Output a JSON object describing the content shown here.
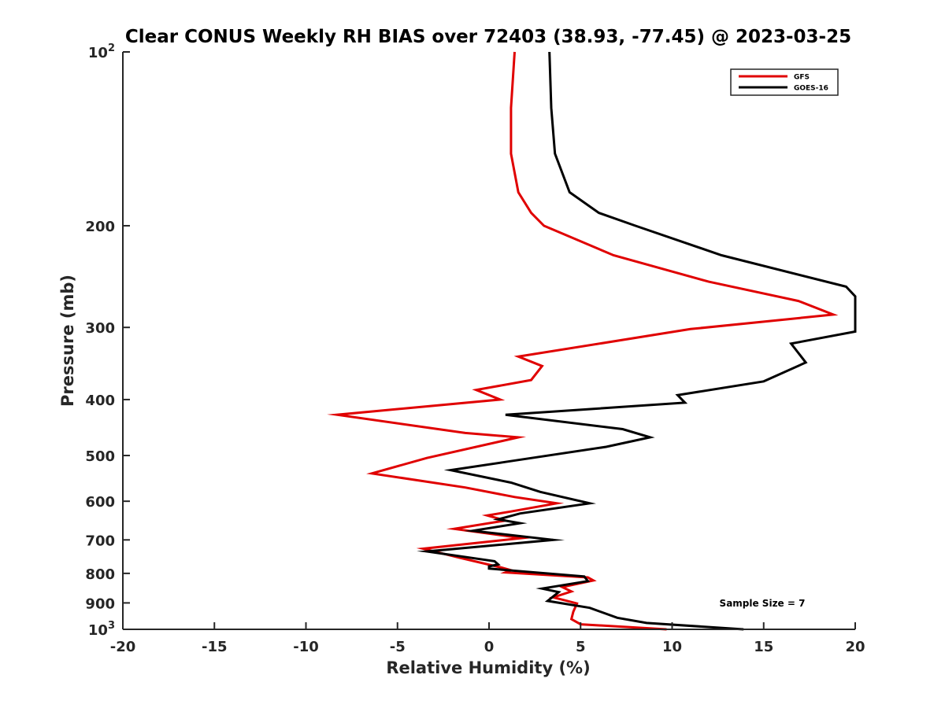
{
  "chart_data": {
    "type": "line",
    "title": "Clear CONUS Weekly RH BIAS over 72403 (38.93, -77.45) @ 2023-03-25",
    "xlabel": "Relative Humidity (%)",
    "ylabel": "Pressure (mb)",
    "xlim": [
      -20,
      20
    ],
    "ylim": [
      100,
      1000
    ],
    "y_scale": "log",
    "y_reversed": true,
    "x_ticks": [
      "-20",
      "-15",
      "-10",
      "-5",
      "0",
      "5",
      "10",
      "15",
      "20"
    ],
    "y_ticks": [
      {
        "value": 100,
        "base": "10",
        "exp": "2"
      },
      {
        "value": 200,
        "label": "200"
      },
      {
        "value": 300,
        "label": "300"
      },
      {
        "value": 400,
        "label": "400"
      },
      {
        "value": 500,
        "label": "500"
      },
      {
        "value": 600,
        "label": "600"
      },
      {
        "value": 700,
        "label": "700"
      },
      {
        "value": 800,
        "label": "800"
      },
      {
        "value": 900,
        "label": "900"
      },
      {
        "value": 1000,
        "base": "10",
        "exp": "3"
      }
    ],
    "grid": false,
    "legend_position": "top-right",
    "annotation": "Sample Size = 7",
    "series": [
      {
        "name": "GFS",
        "color": "#e00000",
        "points": [
          [
            1.4,
            100
          ],
          [
            1.2,
            125
          ],
          [
            1.2,
            150
          ],
          [
            1.6,
            175
          ],
          [
            2.3,
            190
          ],
          [
            3.0,
            200
          ],
          [
            6.8,
            225
          ],
          [
            12.0,
            250
          ],
          [
            16.9,
            270
          ],
          [
            18.8,
            285
          ],
          [
            11.0,
            302
          ],
          [
            1.6,
            337
          ],
          [
            2.9,
            350
          ],
          [
            2.3,
            370
          ],
          [
            -0.7,
            385
          ],
          [
            0.6,
            400
          ],
          [
            -8.3,
            425
          ],
          [
            -1.3,
            457
          ],
          [
            1.6,
            465
          ],
          [
            -3.4,
            505
          ],
          [
            -6.4,
            537
          ],
          [
            -1.3,
            568
          ],
          [
            1.4,
            590
          ],
          [
            3.7,
            605
          ],
          [
            1.2,
            625
          ],
          [
            -0.1,
            635
          ],
          [
            0.9,
            648
          ],
          [
            -1.9,
            670
          ],
          [
            1.8,
            695
          ],
          [
            -3.6,
            725
          ],
          [
            -1.6,
            752
          ],
          [
            0.7,
            782
          ],
          [
            1.2,
            790
          ],
          [
            0.9,
            797
          ],
          [
            5.4,
            813
          ],
          [
            5.7,
            823
          ],
          [
            4.0,
            845
          ],
          [
            4.5,
            860
          ],
          [
            3.5,
            880
          ],
          [
            4.8,
            902
          ],
          [
            4.6,
            932
          ],
          [
            4.5,
            960
          ],
          [
            5.0,
            980
          ],
          [
            9.7,
            1000
          ]
        ]
      },
      {
        "name": "GOES-16",
        "color": "#000000",
        "points": [
          [
            3.3,
            100
          ],
          [
            3.4,
            125
          ],
          [
            3.6,
            150
          ],
          [
            4.4,
            175
          ],
          [
            6.0,
            190
          ],
          [
            8.0,
            200
          ],
          [
            12.7,
            225
          ],
          [
            19.5,
            255
          ],
          [
            20.0,
            265
          ],
          [
            20.0,
            305
          ],
          [
            16.5,
            320
          ],
          [
            17.3,
            345
          ],
          [
            15.0,
            372
          ],
          [
            10.3,
            393
          ],
          [
            10.7,
            405
          ],
          [
            0.9,
            425
          ],
          [
            7.3,
            450
          ],
          [
            8.8,
            465
          ],
          [
            6.4,
            483
          ],
          [
            0.9,
            513
          ],
          [
            -2.1,
            530
          ],
          [
            1.2,
            557
          ],
          [
            2.8,
            578
          ],
          [
            5.5,
            605
          ],
          [
            1.7,
            630
          ],
          [
            0.5,
            645
          ],
          [
            1.7,
            655
          ],
          [
            -0.9,
            675
          ],
          [
            3.5,
            700
          ],
          [
            -3.4,
            733
          ],
          [
            0.3,
            762
          ],
          [
            0.5,
            772
          ],
          [
            0.0,
            778
          ],
          [
            0.0,
            785
          ],
          [
            5.2,
            810
          ],
          [
            5.4,
            825
          ],
          [
            2.9,
            850
          ],
          [
            3.8,
            862
          ],
          [
            3.2,
            893
          ],
          [
            5.5,
            918
          ],
          [
            7.0,
            955
          ],
          [
            8.6,
            975
          ],
          [
            13.9,
            1000
          ]
        ]
      }
    ]
  }
}
